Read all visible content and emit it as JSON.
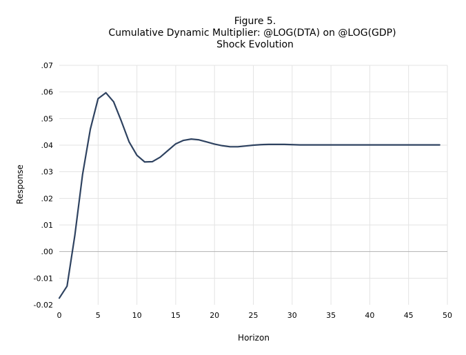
{
  "chart_data": {
    "type": "line",
    "title_lines": [
      "Figure 5.",
      "Cumulative Dynamic Multiplier: @LOG(DTA) on @LOG(GDP)",
      "Shock Evolution"
    ],
    "xlabel": "Horizon",
    "ylabel": "Response",
    "xlim": [
      0,
      50
    ],
    "ylim": [
      -0.02,
      0.07
    ],
    "x_ticks": [
      0,
      5,
      10,
      15,
      20,
      25,
      30,
      35,
      40,
      45,
      50
    ],
    "x_tick_labels": [
      "0",
      "5",
      "10",
      "15",
      "20",
      "25",
      "30",
      "35",
      "40",
      "45",
      "50"
    ],
    "y_ticks": [
      -0.02,
      -0.01,
      0.0,
      0.01,
      0.02,
      0.03,
      0.04,
      0.05,
      0.06,
      0.07
    ],
    "y_tick_labels": [
      "-0.02",
      "-0.01",
      ".00",
      ".01",
      ".02",
      ".03",
      ".04",
      ".05",
      ".06",
      ".07"
    ],
    "grid": true,
    "legend": "none",
    "series": [
      {
        "color": "#2e4260",
        "x": [
          0,
          1,
          2,
          3,
          4,
          5,
          6,
          7,
          8,
          9,
          10,
          11,
          12,
          13,
          14,
          15,
          16,
          17,
          18,
          19,
          20,
          21,
          22,
          23,
          24,
          25,
          26,
          27,
          28,
          29,
          30,
          31,
          32,
          33,
          34,
          35,
          36,
          37,
          38,
          39,
          40,
          41,
          42,
          43,
          44,
          45,
          46,
          47,
          48,
          49
        ],
        "values": [
          -0.0175,
          -0.013,
          0.006,
          0.029,
          0.046,
          0.0575,
          0.0597,
          0.0563,
          0.049,
          0.0412,
          0.0362,
          0.0337,
          0.0338,
          0.0355,
          0.038,
          0.0405,
          0.0418,
          0.0423,
          0.042,
          0.0412,
          0.0404,
          0.0398,
          0.0394,
          0.0394,
          0.0397,
          0.04,
          0.0402,
          0.0403,
          0.0403,
          0.0403,
          0.0402,
          0.0401,
          0.0401,
          0.0401,
          0.0401,
          0.0401,
          0.0401,
          0.0401,
          0.0401,
          0.0401,
          0.0401,
          0.0401,
          0.0401,
          0.0401,
          0.0401,
          0.0401,
          0.0401,
          0.0401,
          0.0401,
          0.0401
        ]
      }
    ]
  }
}
